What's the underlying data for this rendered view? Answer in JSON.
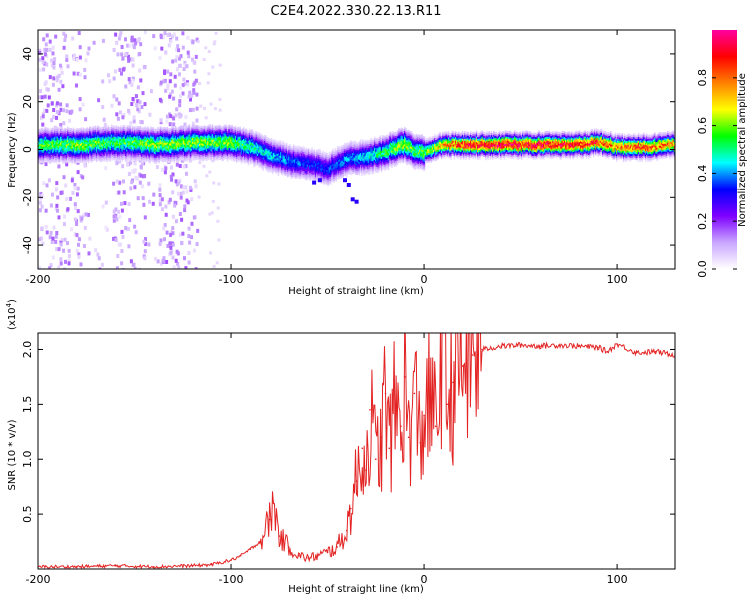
{
  "title": "C2E4.2022.330.22.13.R11",
  "chart_data": [
    {
      "type": "heatmap",
      "name": "spectrogram",
      "xlabel": "Height of straight line (km)",
      "ylabel": "Frequency (Hz)",
      "xlim": [
        -200,
        130
      ],
      "ylim": [
        -50,
        50
      ],
      "xticks": [
        -200,
        -100,
        0,
        100
      ],
      "yticks": [
        -40,
        -20,
        0,
        20,
        40
      ],
      "colorbar": {
        "label": "Normalized spectral amplitude",
        "range": [
          0.0,
          1.0
        ],
        "ticks": [
          "0.0",
          "0.2",
          "0.4",
          "0.6",
          "0.8"
        ],
        "colors": [
          "#ffffff",
          "#c9a6ff",
          "#7f00ff",
          "#0000ff",
          "#00ffff",
          "#00ff00",
          "#ffff00",
          "#ff8000",
          "#ff0000",
          "#ff00a0"
        ]
      },
      "ridge": {
        "x": [
          -200,
          -180,
          -160,
          -140,
          -120,
          -100,
          -90,
          -80,
          -70,
          -60,
          -50,
          -40,
          -30,
          -20,
          -15,
          -10,
          -5,
          0,
          10,
          20,
          40,
          60,
          80,
          90,
          100,
          110,
          130
        ],
        "frequency_hz": [
          2,
          2,
          3,
          2,
          3,
          3,
          1,
          -2,
          -5,
          -6,
          -8,
          -4,
          -3,
          -1,
          1,
          2,
          -1,
          -1,
          2,
          2,
          2,
          2,
          2,
          3,
          1,
          1,
          2
        ],
        "amplitude": [
          0.55,
          0.6,
          0.55,
          0.6,
          0.6,
          0.6,
          0.5,
          0.45,
          0.4,
          0.35,
          0.35,
          0.4,
          0.45,
          0.55,
          0.6,
          0.65,
          0.55,
          0.6,
          0.75,
          0.9,
          0.95,
          0.95,
          0.9,
          0.85,
          0.8,
          0.85,
          0.8
        ]
      }
    },
    {
      "type": "line",
      "name": "snr",
      "xlabel": "Height of straight line (km)",
      "ylabel": "SNR (10 * v/v)",
      "yscale_label": "(x10",
      "yscale_exp": "4",
      "xlim": [
        -200,
        130
      ],
      "ylim": [
        0,
        2.15
      ],
      "xticks": [
        -200,
        -100,
        0,
        100
      ],
      "yticks": [
        0.5,
        1.0,
        1.5,
        2.0
      ],
      "ytick_labels": [
        "0.5",
        "1.0",
        "1.5",
        "2.0"
      ],
      "line_color": "#e32222",
      "series": [
        {
          "name": "SNR",
          "x": [
            -200,
            -180,
            -160,
            -140,
            -120,
            -110,
            -100,
            -95,
            -90,
            -85,
            -80,
            -78,
            -75,
            -70,
            -65,
            -60,
            -55,
            -50,
            -45,
            -40,
            -38,
            -35,
            -32,
            -30,
            -28,
            -25,
            -22,
            -20,
            -18,
            -15,
            -12,
            -10,
            -8,
            -5,
            -2,
            0,
            3,
            6,
            10,
            12,
            15,
            20,
            25,
            30,
            40,
            50,
            60,
            70,
            80,
            90,
            95,
            100,
            110,
            120,
            130
          ],
          "y": [
            0.02,
            0.02,
            0.03,
            0.02,
            0.03,
            0.04,
            0.08,
            0.12,
            0.18,
            0.25,
            0.45,
            0.6,
            0.3,
            0.2,
            0.12,
            0.1,
            0.12,
            0.15,
            0.2,
            0.35,
            0.55,
            0.8,
            1.1,
            0.9,
            1.45,
            1.0,
            1.2,
            1.6,
            1.1,
            1.5,
            1.3,
            1.75,
            1.2,
            1.6,
            1.15,
            1.4,
            1.55,
            1.3,
            2.15,
            1.5,
            1.7,
            1.85,
            1.95,
            2.0,
            2.03,
            2.04,
            2.03,
            2.04,
            2.03,
            2.02,
            1.98,
            2.05,
            1.97,
            1.98,
            1.95
          ]
        }
      ]
    }
  ]
}
